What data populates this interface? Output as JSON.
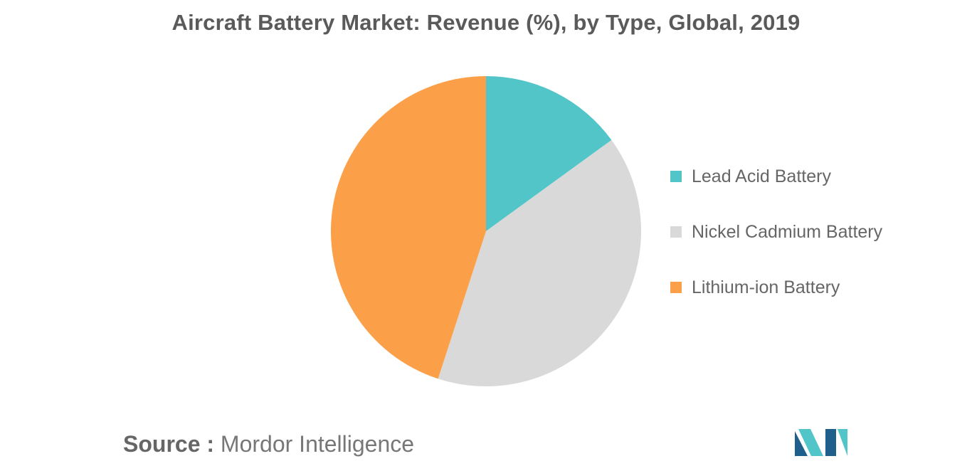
{
  "title": "Aircraft Battery Market: Revenue (%), by Type, Global, 2019",
  "chart_data": {
    "type": "pie",
    "title": "Aircraft Battery Market: Revenue (%), by Type, Global, 2019",
    "categories": [
      "Lead Acid Battery",
      "Nickel Cadmium Battery",
      "Lithium-ion Battery"
    ],
    "values": [
      15,
      40,
      45
    ],
    "colors": [
      "#52c5c9",
      "#d9d9d9",
      "#fba049"
    ],
    "start_angle_deg": 0,
    "direction": "clockwise",
    "legend_position": "right"
  },
  "legend": {
    "items": [
      {
        "label": "Lead Acid Battery",
        "color": "#52c5c9"
      },
      {
        "label": "Nickel Cadmium Battery",
        "color": "#d9d9d9"
      },
      {
        "label": "Lithium-ion Battery",
        "color": "#fba049"
      }
    ]
  },
  "source": {
    "prefix": "Source :",
    "name": "Mordor Intelligence"
  },
  "logo": {
    "name": "mordor-intelligence-logo",
    "colors": [
      "#1f5f8b",
      "#52c5c9"
    ]
  }
}
